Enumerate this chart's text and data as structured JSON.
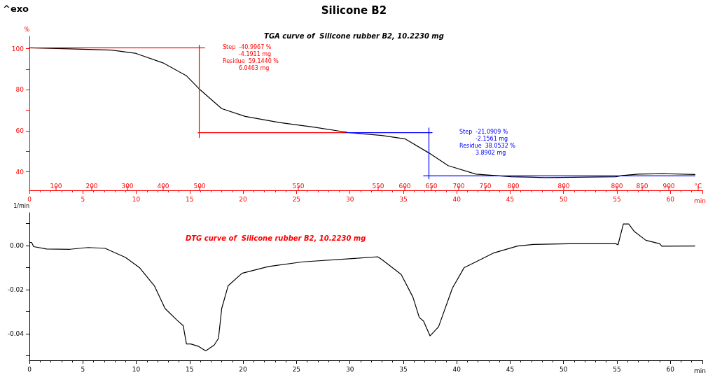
{
  "chart_data": [
    {
      "type": "line",
      "title": "Silicone B2",
      "subtitle": "TGA curve of  Silicone rubber B2, 10.2230 mg",
      "ylabel": "%",
      "xlabel": "min",
      "xlim": [
        0,
        63
      ],
      "xticks": [
        0,
        5,
        10,
        15,
        20,
        25,
        30,
        35,
        40,
        45,
        50,
        55,
        60
      ],
      "ylim": [
        31,
        106
      ],
      "yticks": [
        40,
        {
          "value": 50,
          "label": null
        },
        60,
        {
          "value": 70,
          "label": null
        },
        80,
        {
          "value": 90,
          "label": null
        },
        100
      ],
      "series": [
        {
          "color": "#000000",
          "x": [
            0,
            3.8,
            7.7,
            9.9,
            12.5,
            14.7,
            16.0,
            18.0,
            20.2,
            23.4,
            26.7,
            29.8,
            33.0,
            35.2,
            37.4,
            39.2,
            41.8,
            45.1,
            48.3,
            54.9,
            55.5,
            57.0,
            59.3,
            62.3
          ],
          "values": [
            100.4,
            99.9,
            99.3,
            97.8,
            93.1,
            86.8,
            79.9,
            70.8,
            67.0,
            64.0,
            61.7,
            59.2,
            57.7,
            56.0,
            49.2,
            43.0,
            38.9,
            37.6,
            37.2,
            37.6,
            38.2,
            38.9,
            39.1,
            38.7
          ]
        },
        {
          "color": "#ff0000",
          "x": [
            0,
            16.4
          ],
          "values": [
            100.4,
            100.4
          ]
        },
        {
          "color": "#ff0000",
          "x": [
            15.9,
            15.9
          ],
          "values": [
            101.7,
            56.7
          ]
        },
        {
          "color": "#ff0000",
          "x": [
            15.8,
            29.7
          ],
          "values": [
            59.1,
            59.1
          ]
        },
        {
          "color": "#0000ff",
          "x": [
            29.6,
            37.7
          ],
          "values": [
            59.1,
            59.1
          ]
        },
        {
          "color": "#0000ff",
          "x": [
            37.4,
            37.4
          ],
          "values": [
            61.4,
            36.5
          ]
        },
        {
          "color": "#0000ff",
          "x": [
            36.9,
            62.3
          ],
          "values": [
            38.0,
            38.0
          ]
        }
      ],
      "annotations": [
        "^exo",
        "Step  -40.9967 %\n         -4.1911 mg\nResidue  59.1440 %\n         6.0463 mg",
        "Step  -21.0909 %\n         -2.1561 mg\nResidue  38.0532 %\n         3.8902 mg",
        "100",
        "200",
        "300",
        "400",
        "500",
        "550",
        "550",
        "600",
        "650",
        "700",
        "750",
        "800",
        "800",
        "800",
        "850",
        "900",
        "°C"
      ]
    },
    {
      "type": "line",
      "title": "DTG curve of  Silicone rubber B2, 10.2230 mg",
      "ylabel": "1/min",
      "xlabel": "min",
      "xlim": [
        0,
        63
      ],
      "xticks": [
        0,
        5,
        10,
        15,
        20,
        25,
        30,
        35,
        40,
        45,
        50,
        55,
        60
      ],
      "ylim": [
        -0.052,
        0.015
      ],
      "yticks": [
        {
          "value": 0.01,
          "label": null
        },
        {
          "value": 0,
          "label": "0.00"
        },
        {
          "value": -0.01,
          "label": null
        },
        -0.02,
        {
          "value": -0.03,
          "label": null
        },
        -0.04,
        {
          "value": -0.05,
          "label": null
        }
      ],
      "series": [
        {
          "color": "#000000",
          "x": [
            0,
            0.2,
            0.4,
            1.6,
            3.8,
            5.5,
            7.1,
            9.0,
            10.3,
            11.7,
            12.7,
            13.8,
            14.4,
            14.7,
            15.1,
            15.8,
            16.5,
            17.3,
            17.7,
            18.0,
            18.6,
            19.9,
            22.4,
            25.6,
            30.9,
            32.6,
            33.0,
            34.8,
            35.9,
            36.5,
            36.9,
            37.5,
            38.3,
            39.6,
            40.7,
            41.8,
            43.5,
            45.7,
            47.2,
            50.5,
            54.9,
            55.1,
            55.6,
            56.1,
            56.6,
            57.7,
            59.0,
            59.2,
            62.3
          ],
          "values": [
            0.0015,
            0.0015,
            -0.0004,
            -0.0015,
            -0.0016,
            -0.0008,
            -0.0012,
            -0.0053,
            -0.0099,
            -0.0182,
            -0.0285,
            -0.0337,
            -0.0363,
            -0.0446,
            -0.0446,
            -0.0456,
            -0.0477,
            -0.0451,
            -0.042,
            -0.0285,
            -0.0182,
            -0.0125,
            -0.0094,
            -0.0073,
            -0.0056,
            -0.005,
            -0.0063,
            -0.013,
            -0.0233,
            -0.0326,
            -0.0342,
            -0.0409,
            -0.0368,
            -0.0192,
            -0.0099,
            -0.0073,
            -0.0032,
            -0.0001,
            0.0006,
            0.0009,
            0.0009,
            0.0004,
            0.0099,
            0.0099,
            0.0066,
            0.0025,
            0.0009,
            -0.0002,
            -0.0001
          ]
        }
      ]
    }
  ]
}
